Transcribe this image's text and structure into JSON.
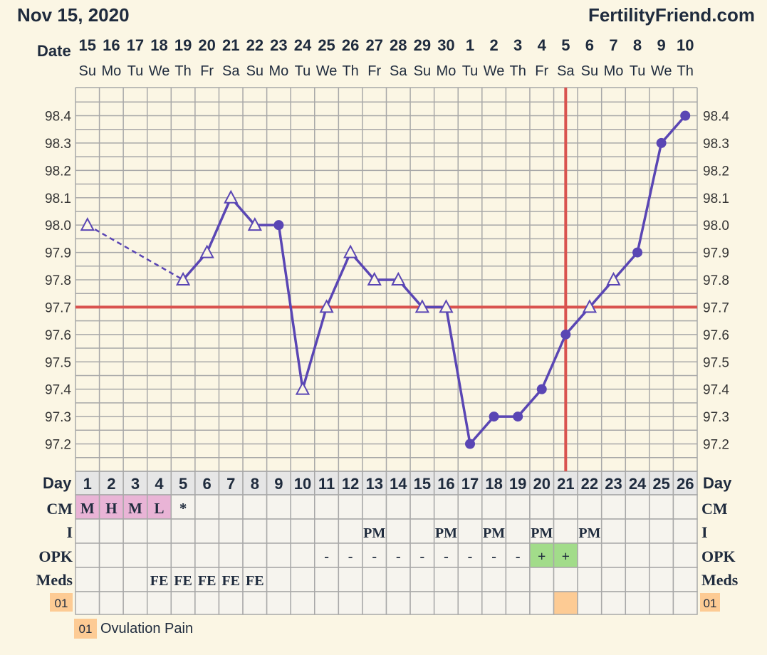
{
  "header": {
    "date": "Nov 15, 2020",
    "site": "FertilityFriend.com"
  },
  "row_labels": {
    "date": "Date",
    "day": "Day",
    "cm": "CM",
    "i": "I",
    "opk": "OPK",
    "meds": "Meds",
    "code": "01"
  },
  "legend": {
    "code": "01",
    "text": "Ovulation Pain"
  },
  "colors": {
    "background": "#fbf6e4",
    "grid": "#a8a8a8",
    "line": "#5a46b4",
    "coverline": "#d9534f",
    "cm_fill": "#e9b4d6",
    "opk_positive": "#a2dc8a",
    "code_fill": "#fdcb94",
    "cell_fill": "#f6f4ee",
    "day_row_fill": "#e6e6e6"
  },
  "chart_data": {
    "type": "line",
    "dates": [
      "15",
      "16",
      "17",
      "18",
      "19",
      "20",
      "21",
      "22",
      "23",
      "24",
      "25",
      "26",
      "27",
      "28",
      "29",
      "30",
      "1",
      "2",
      "3",
      "4",
      "5",
      "6",
      "7",
      "8",
      "9",
      "10"
    ],
    "weekdays": [
      "Su",
      "Mo",
      "Tu",
      "We",
      "Th",
      "Fr",
      "Sa",
      "Su",
      "Mo",
      "Tu",
      "We",
      "Th",
      "Fr",
      "Sa",
      "Su",
      "Mo",
      "Tu",
      "We",
      "Th",
      "Fr",
      "Sa",
      "Su",
      "Mo",
      "Tu",
      "We",
      "Th"
    ],
    "cycle_days": [
      "1",
      "2",
      "3",
      "4",
      "5",
      "6",
      "7",
      "8",
      "9",
      "10",
      "11",
      "12",
      "13",
      "14",
      "15",
      "16",
      "17",
      "18",
      "19",
      "20",
      "21",
      "22",
      "23",
      "24",
      "25",
      "26"
    ],
    "y_ticks": [
      "98.4",
      "98.3",
      "98.2",
      "98.1",
      "98.0",
      "97.9",
      "97.8",
      "97.7",
      "97.6",
      "97.5",
      "97.4",
      "97.3",
      "97.2"
    ],
    "ylim": [
      97.1,
      98.5
    ],
    "temps": [
      98.0,
      null,
      null,
      null,
      97.8,
      97.9,
      98.1,
      98.0,
      98.0,
      97.4,
      97.7,
      97.9,
      97.8,
      97.8,
      97.7,
      97.7,
      97.2,
      97.3,
      97.3,
      97.4,
      97.6,
      97.7,
      97.8,
      97.9,
      98.3,
      98.4
    ],
    "markers": [
      "triangle",
      null,
      null,
      null,
      "triangle",
      "triangle",
      "triangle",
      "triangle",
      "dot",
      "triangle",
      "triangle",
      "triangle",
      "triangle",
      "triangle",
      "triangle",
      "triangle",
      "dot",
      "dot",
      "dot",
      "dot",
      "dot",
      "triangle",
      "triangle",
      "dot",
      "dot",
      "dot"
    ],
    "dashed_segment": [
      1,
      5
    ],
    "coverline": 97.7,
    "ovulation_day": 21,
    "cm": [
      "M",
      "H",
      "M",
      "L",
      "*",
      "",
      "",
      "",
      "",
      "",
      "",
      "",
      "",
      "",
      "",
      "",
      "",
      "",
      "",
      "",
      "",
      "",
      "",
      "",
      "",
      ""
    ],
    "intercourse": [
      "",
      "",
      "",
      "",
      "",
      "",
      "",
      "",
      "",
      "",
      "",
      "",
      "PM",
      "",
      "",
      "PM",
      "",
      "PM",
      "",
      "PM",
      "",
      "PM",
      "",
      "",
      "",
      ""
    ],
    "opk": [
      "",
      "",
      "",
      "",
      "",
      "",
      "",
      "",
      "",
      "",
      "-",
      "-",
      "-",
      "-",
      "-",
      "-",
      "-",
      "-",
      "-",
      "+",
      "+",
      "",
      "",
      "",
      "",
      ""
    ],
    "meds": [
      "",
      "",
      "",
      "FE",
      "FE",
      "FE",
      "FE",
      "FE",
      "",
      "",
      "",
      "",
      "",
      "",
      "",
      "",
      "",
      "",
      "",
      "",
      "",
      "",
      "",
      "",
      "",
      ""
    ],
    "codes_marked_days": [
      21
    ]
  }
}
